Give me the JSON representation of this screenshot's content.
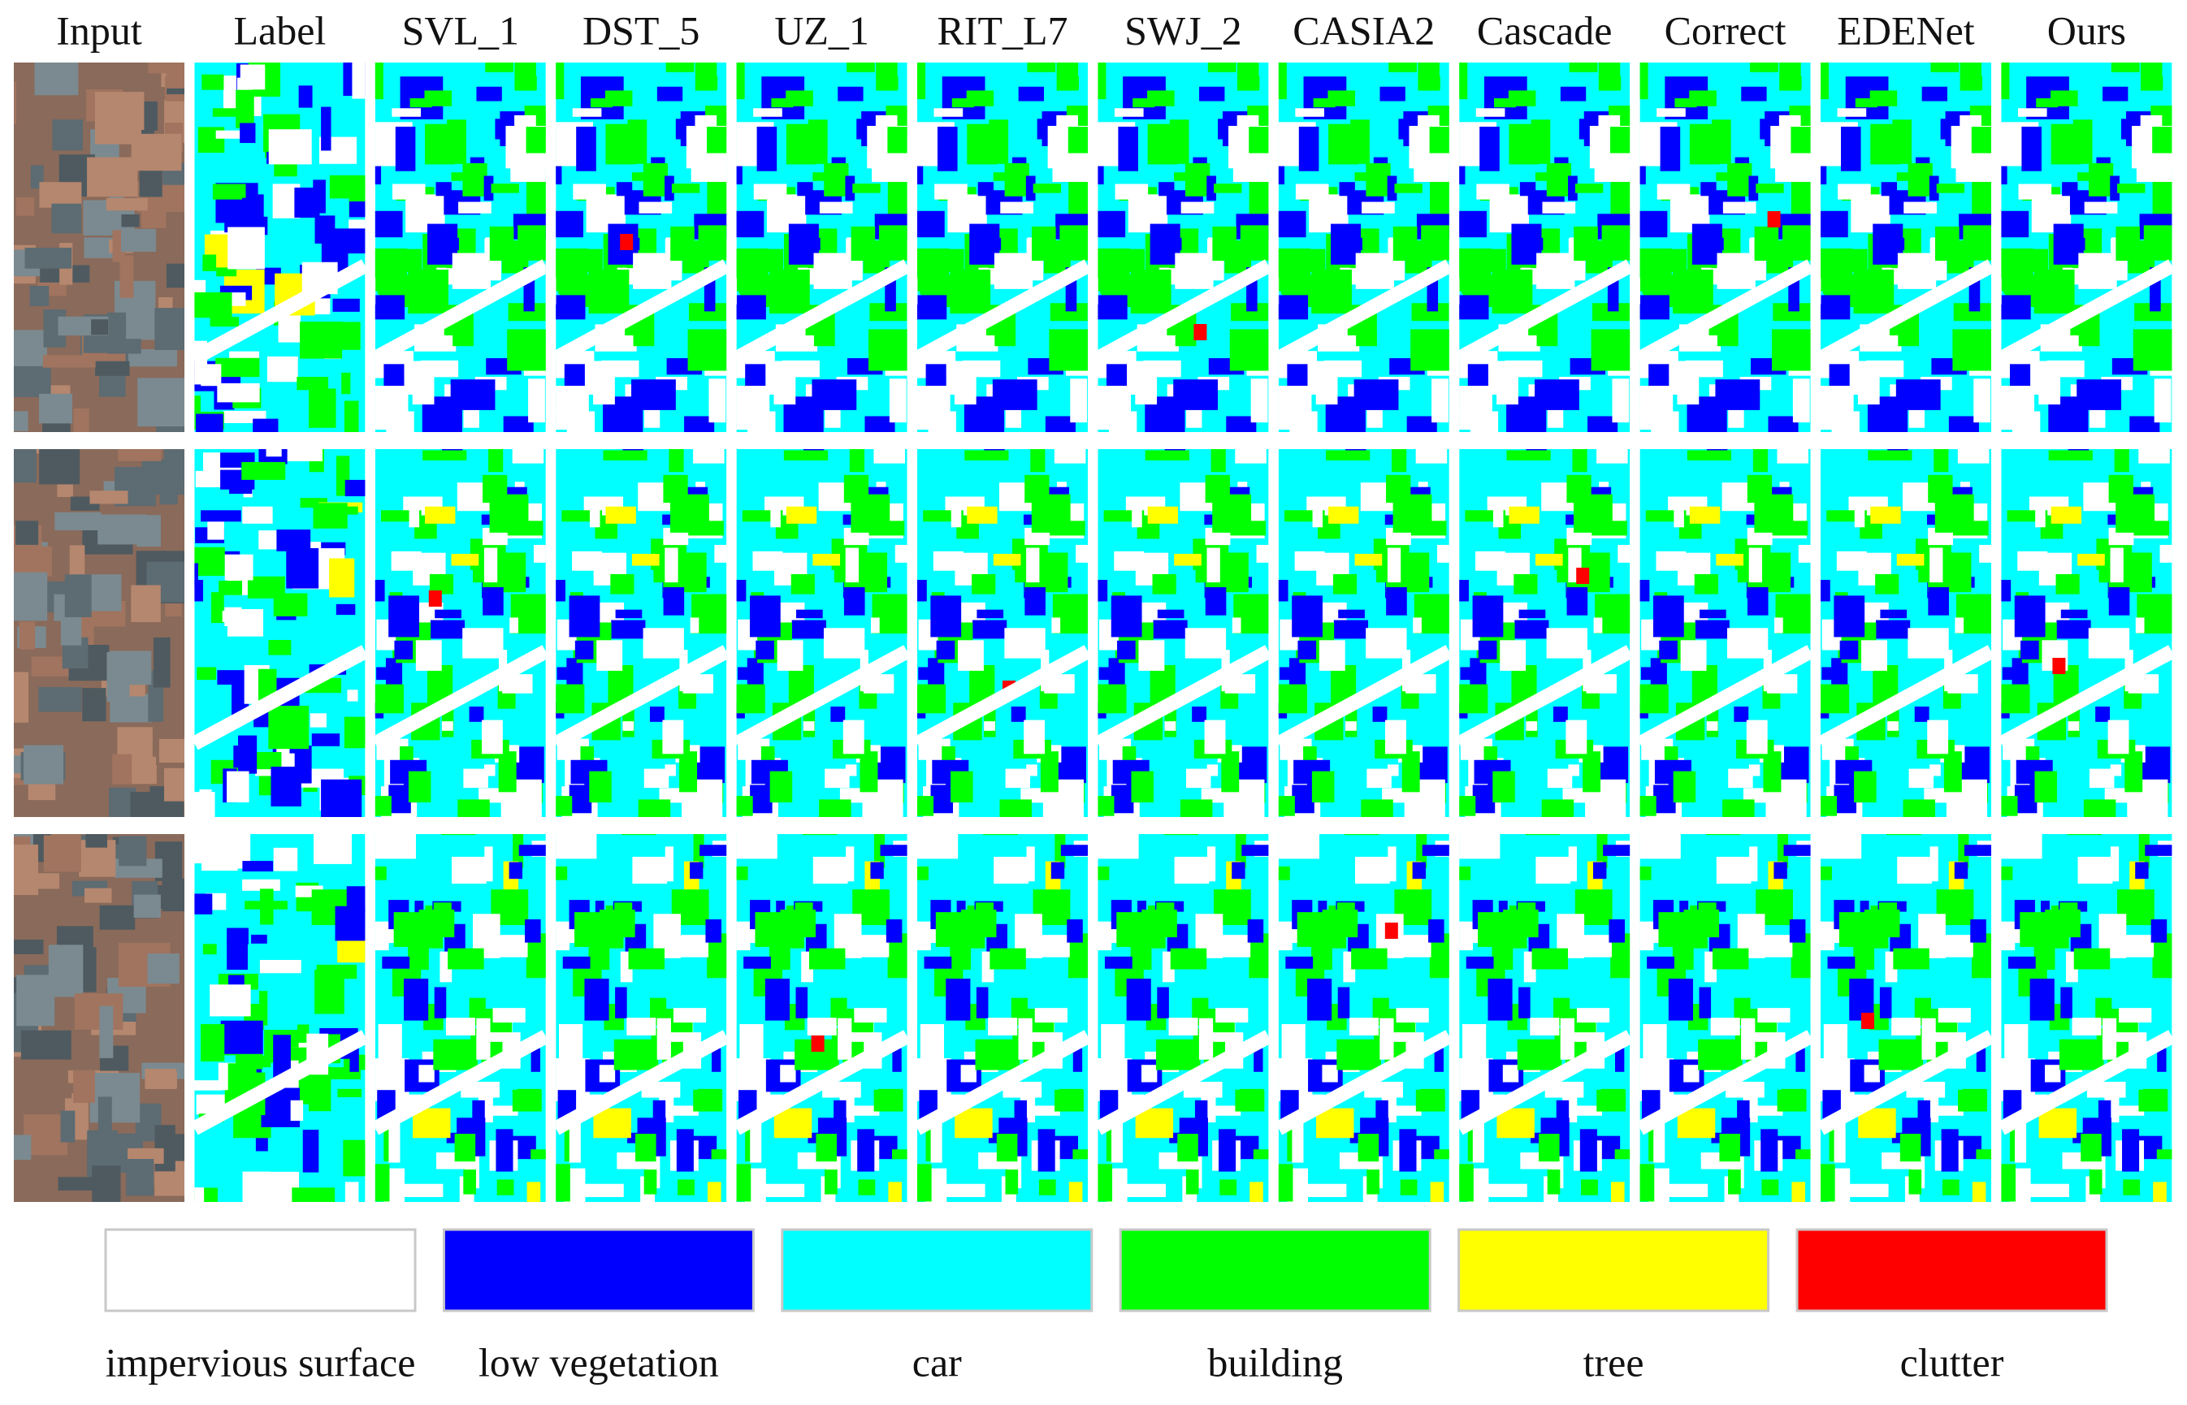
{
  "columns": [
    "Input",
    "Label",
    "SVL_1",
    "DST_5",
    "UZ_1",
    "RIT_L7",
    "SWJ_2",
    "CASIA2",
    "Cascade",
    "Correct",
    "EDENet",
    "Ours"
  ],
  "legend": [
    {
      "label": "impervious surface",
      "color": "#ffffff"
    },
    {
      "label": "low vegetation",
      "color": "#0000ff"
    },
    {
      "label": "car",
      "color": "#00ffff"
    },
    {
      "label": "building",
      "color": "#00ff00"
    },
    {
      "label": "tree",
      "color": "#ffff00"
    },
    {
      "label": "clutter",
      "color": "#ff0000"
    }
  ]
}
